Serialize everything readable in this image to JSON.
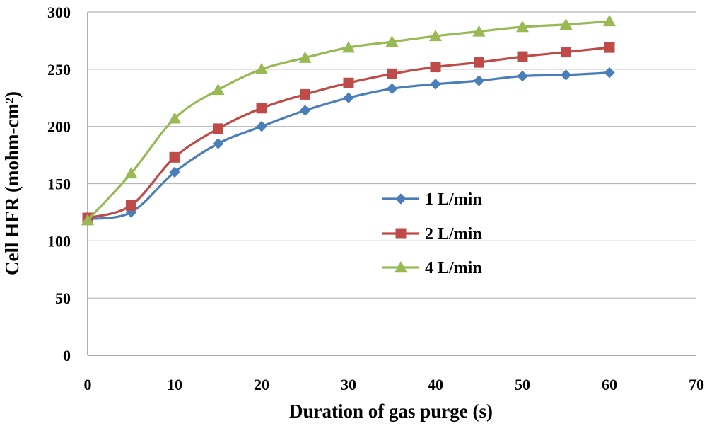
{
  "chart_data": {
    "type": "line",
    "xlabel": "Duration of gas purge (s)",
    "ylabel": "Cell HFR (mohm-cm²)",
    "xlim": [
      0,
      70
    ],
    "ylim": [
      0,
      300
    ],
    "xticks": [
      0,
      10,
      20,
      30,
      40,
      50,
      60,
      70
    ],
    "yticks": [
      0,
      50,
      100,
      150,
      200,
      250,
      300
    ],
    "grid": "horizontal",
    "legend": "center-right",
    "series": [
      {
        "name": "1 L/min",
        "color": "#4a7ebb",
        "marker": "diamond",
        "x": [
          0,
          5,
          10,
          15,
          20,
          25,
          30,
          35,
          40,
          45,
          50,
          55,
          60
        ],
        "y": [
          119,
          125,
          160,
          185,
          200,
          214,
          225,
          233,
          237,
          240,
          244,
          245,
          247
        ]
      },
      {
        "name": "2 L/min",
        "color": "#be4b48",
        "marker": "square",
        "x": [
          0,
          5,
          10,
          15,
          20,
          25,
          30,
          35,
          40,
          45,
          50,
          55,
          60
        ],
        "y": [
          120,
          131,
          173,
          198,
          216,
          228,
          238,
          246,
          252,
          256,
          261,
          265,
          269
        ]
      },
      {
        "name": "4 L/min",
        "color": "#98b954",
        "marker": "triangle",
        "x": [
          0,
          5,
          10,
          15,
          20,
          25,
          30,
          35,
          40,
          45,
          50,
          55,
          60
        ],
        "y": [
          118,
          159,
          207,
          232,
          250,
          260,
          269,
          274,
          279,
          283,
          287,
          289,
          292
        ]
      }
    ]
  }
}
